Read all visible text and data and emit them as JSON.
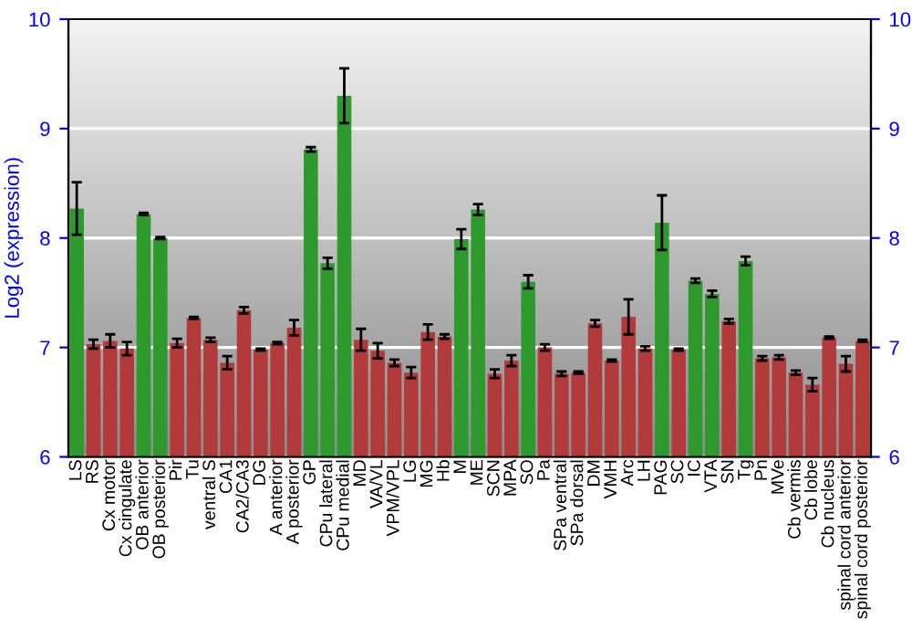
{
  "chart_data": {
    "type": "bar",
    "ylabel": "Log2 (expression)",
    "categories": [
      "LS",
      "RS",
      "Cx motor",
      "Cx cingulate",
      "OB anterior",
      "OB posterior",
      "Pir",
      "Tu",
      "ventral S",
      "CA1",
      "CA2/CA3",
      "DG",
      "A anterior",
      "A posterior",
      "GP",
      "CPu lateral",
      "CPu medial",
      "MD",
      "VA/VL",
      "VPM/VPL",
      "LG",
      "MG",
      "Hb",
      "M",
      "ME",
      "SCN",
      "MPA",
      "SO",
      "Pa",
      "SPa ventral",
      "SPa dorsal",
      "DM",
      "VMH",
      "Arc",
      "LH",
      "PAG",
      "SC",
      "IC",
      "VTA",
      "SN",
      "Tg",
      "Pn",
      "MVe",
      "Cb vermis",
      "Cb lobe",
      "Cb nucleus",
      "spinal cord anterior",
      "spinal cord posterior"
    ],
    "values": [
      8.27,
      7.03,
      7.06,
      6.99,
      8.22,
      8.0,
      7.04,
      7.27,
      7.07,
      6.86,
      7.34,
      6.98,
      7.04,
      7.18,
      8.81,
      7.77,
      9.3,
      7.07,
      6.97,
      6.86,
      6.77,
      7.14,
      7.1,
      7.99,
      8.26,
      6.76,
      6.88,
      7.6,
      7.0,
      6.76,
      6.77,
      7.22,
      6.88,
      7.28,
      6.99,
      8.14,
      6.98,
      7.61,
      7.49,
      7.24,
      7.79,
      6.9,
      6.91,
      6.77,
      6.66,
      7.09,
      6.85,
      7.06
    ],
    "errors": [
      0.24,
      0.04,
      0.06,
      0.06,
      0.01,
      0.01,
      0.04,
      0.01,
      0.02,
      0.06,
      0.03,
      0.01,
      0.01,
      0.07,
      0.02,
      0.05,
      0.25,
      0.1,
      0.07,
      0.03,
      0.05,
      0.07,
      0.02,
      0.09,
      0.05,
      0.04,
      0.05,
      0.06,
      0.03,
      0.02,
      0.01,
      0.03,
      0.01,
      0.16,
      0.02,
      0.25,
      0.01,
      0.02,
      0.03,
      0.02,
      0.04,
      0.02,
      0.02,
      0.02,
      0.06,
      0.01,
      0.07,
      0.01
    ],
    "colors": [
      "#2e9a2e",
      "#b23a3a",
      "#b23a3a",
      "#b23a3a",
      "#2e9a2e",
      "#2e9a2e",
      "#b23a3a",
      "#b23a3a",
      "#b23a3a",
      "#b23a3a",
      "#b23a3a",
      "#b23a3a",
      "#b23a3a",
      "#b23a3a",
      "#2e9a2e",
      "#2e9a2e",
      "#2e9a2e",
      "#b23a3a",
      "#b23a3a",
      "#b23a3a",
      "#b23a3a",
      "#b23a3a",
      "#b23a3a",
      "#2e9a2e",
      "#2e9a2e",
      "#b23a3a",
      "#b23a3a",
      "#2e9a2e",
      "#b23a3a",
      "#b23a3a",
      "#b23a3a",
      "#b23a3a",
      "#b23a3a",
      "#b23a3a",
      "#b23a3a",
      "#2e9a2e",
      "#b23a3a",
      "#2e9a2e",
      "#2e9a2e",
      "#b23a3a",
      "#2e9a2e",
      "#b23a3a",
      "#b23a3a",
      "#b23a3a",
      "#b23a3a",
      "#b23a3a",
      "#b23a3a",
      "#b23a3a"
    ],
    "ylim": [
      6,
      10
    ],
    "yticks": [
      6,
      7,
      8,
      9,
      10
    ],
    "y2lim": [
      6,
      10
    ],
    "y2ticks": [
      6,
      7,
      8,
      9,
      10
    ],
    "grid": "y"
  }
}
